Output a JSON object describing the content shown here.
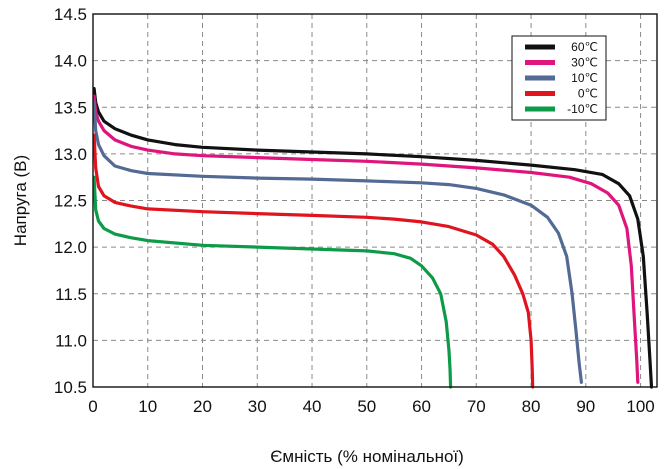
{
  "chart_data": {
    "type": "line",
    "xlabel": "Ємність (% номінальної)",
    "ylabel": "Напруга (В)",
    "xlim": [
      0,
      103
    ],
    "ylim": [
      10.5,
      14.5
    ],
    "x_ticks": [
      0,
      10,
      20,
      30,
      40,
      50,
      60,
      70,
      80,
      90,
      100
    ],
    "x_tick_labels": [
      "0",
      "10",
      "20",
      "30",
      "40",
      "50",
      "60",
      "70",
      "80",
      "90",
      "100"
    ],
    "y_ticks": [
      10.5,
      11.0,
      11.5,
      12.0,
      12.5,
      13.0,
      13.5,
      14.0,
      14.5
    ],
    "y_tick_labels": [
      "10.5",
      "11.0",
      "11.5",
      "12.0",
      "12.5",
      "13.0",
      "13.5",
      "14.0",
      "14.5"
    ],
    "grid": true,
    "legend_position": "top-right",
    "series": [
      {
        "name": "60℃",
        "color": "#111111",
        "points": [
          [
            0.2,
            13.7
          ],
          [
            0.5,
            13.55
          ],
          [
            1,
            13.45
          ],
          [
            2,
            13.35
          ],
          [
            4,
            13.27
          ],
          [
            7,
            13.2
          ],
          [
            10,
            13.15
          ],
          [
            15,
            13.1
          ],
          [
            20,
            13.07
          ],
          [
            30,
            13.04
          ],
          [
            40,
            13.02
          ],
          [
            50,
            13.0
          ],
          [
            60,
            12.97
          ],
          [
            70,
            12.93
          ],
          [
            80,
            12.88
          ],
          [
            88,
            12.83
          ],
          [
            93,
            12.78
          ],
          [
            96,
            12.68
          ],
          [
            98,
            12.55
          ],
          [
            99.5,
            12.3
          ],
          [
            100.5,
            11.9
          ],
          [
            101.2,
            11.3
          ],
          [
            101.7,
            10.8
          ],
          [
            102,
            10.5
          ]
        ]
      },
      {
        "name": "30℃",
        "color": "#E0147D",
        "points": [
          [
            0.2,
            13.62
          ],
          [
            0.5,
            13.45
          ],
          [
            1,
            13.35
          ],
          [
            2,
            13.25
          ],
          [
            4,
            13.15
          ],
          [
            7,
            13.08
          ],
          [
            10,
            13.04
          ],
          [
            15,
            13.0
          ],
          [
            20,
            12.98
          ],
          [
            30,
            12.96
          ],
          [
            40,
            12.94
          ],
          [
            50,
            12.92
          ],
          [
            60,
            12.89
          ],
          [
            70,
            12.85
          ],
          [
            80,
            12.8
          ],
          [
            87,
            12.75
          ],
          [
            91,
            12.68
          ],
          [
            94,
            12.58
          ],
          [
            96,
            12.45
          ],
          [
            97.5,
            12.2
          ],
          [
            98.3,
            11.8
          ],
          [
            98.9,
            11.2
          ],
          [
            99.3,
            10.8
          ],
          [
            99.5,
            10.55
          ]
        ]
      },
      {
        "name": "10℃",
        "color": "#536A94",
        "points": [
          [
            0.2,
            13.55
          ],
          [
            0.5,
            13.25
          ],
          [
            1,
            13.1
          ],
          [
            2,
            12.98
          ],
          [
            4,
            12.87
          ],
          [
            7,
            12.82
          ],
          [
            10,
            12.79
          ],
          [
            20,
            12.76
          ],
          [
            30,
            12.74
          ],
          [
            40,
            12.73
          ],
          [
            50,
            12.71
          ],
          [
            60,
            12.69
          ],
          [
            65,
            12.67
          ],
          [
            70,
            12.63
          ],
          [
            75,
            12.56
          ],
          [
            80,
            12.45
          ],
          [
            83,
            12.32
          ],
          [
            85,
            12.15
          ],
          [
            86.5,
            11.9
          ],
          [
            87.5,
            11.5
          ],
          [
            88.2,
            11.1
          ],
          [
            88.8,
            10.75
          ],
          [
            89.2,
            10.55
          ]
        ]
      },
      {
        "name": "0℃",
        "color": "#E0141F",
        "points": [
          [
            0.2,
            13.2
          ],
          [
            0.5,
            12.85
          ],
          [
            1,
            12.65
          ],
          [
            2,
            12.55
          ],
          [
            4,
            12.48
          ],
          [
            7,
            12.44
          ],
          [
            10,
            12.41
          ],
          [
            20,
            12.38
          ],
          [
            30,
            12.36
          ],
          [
            40,
            12.34
          ],
          [
            50,
            12.32
          ],
          [
            55,
            12.3
          ],
          [
            60,
            12.27
          ],
          [
            65,
            12.22
          ],
          [
            70,
            12.13
          ],
          [
            73,
            12.03
          ],
          [
            75,
            11.9
          ],
          [
            77,
            11.7
          ],
          [
            78.5,
            11.5
          ],
          [
            79.5,
            11.3
          ],
          [
            80,
            11.0
          ],
          [
            80.2,
            10.7
          ],
          [
            80.3,
            10.5
          ]
        ]
      },
      {
        "name": "-10℃",
        "color": "#0E9B49",
        "points": [
          [
            0.2,
            12.75
          ],
          [
            0.5,
            12.4
          ],
          [
            1,
            12.28
          ],
          [
            2,
            12.2
          ],
          [
            4,
            12.14
          ],
          [
            7,
            12.1
          ],
          [
            10,
            12.07
          ],
          [
            20,
            12.02
          ],
          [
            30,
            12.0
          ],
          [
            40,
            11.98
          ],
          [
            50,
            11.96
          ],
          [
            55,
            11.93
          ],
          [
            58,
            11.88
          ],
          [
            60,
            11.8
          ],
          [
            62,
            11.67
          ],
          [
            63.5,
            11.5
          ],
          [
            64.5,
            11.2
          ],
          [
            65,
            10.9
          ],
          [
            65.2,
            10.7
          ],
          [
            65.3,
            10.5
          ]
        ]
      }
    ]
  }
}
